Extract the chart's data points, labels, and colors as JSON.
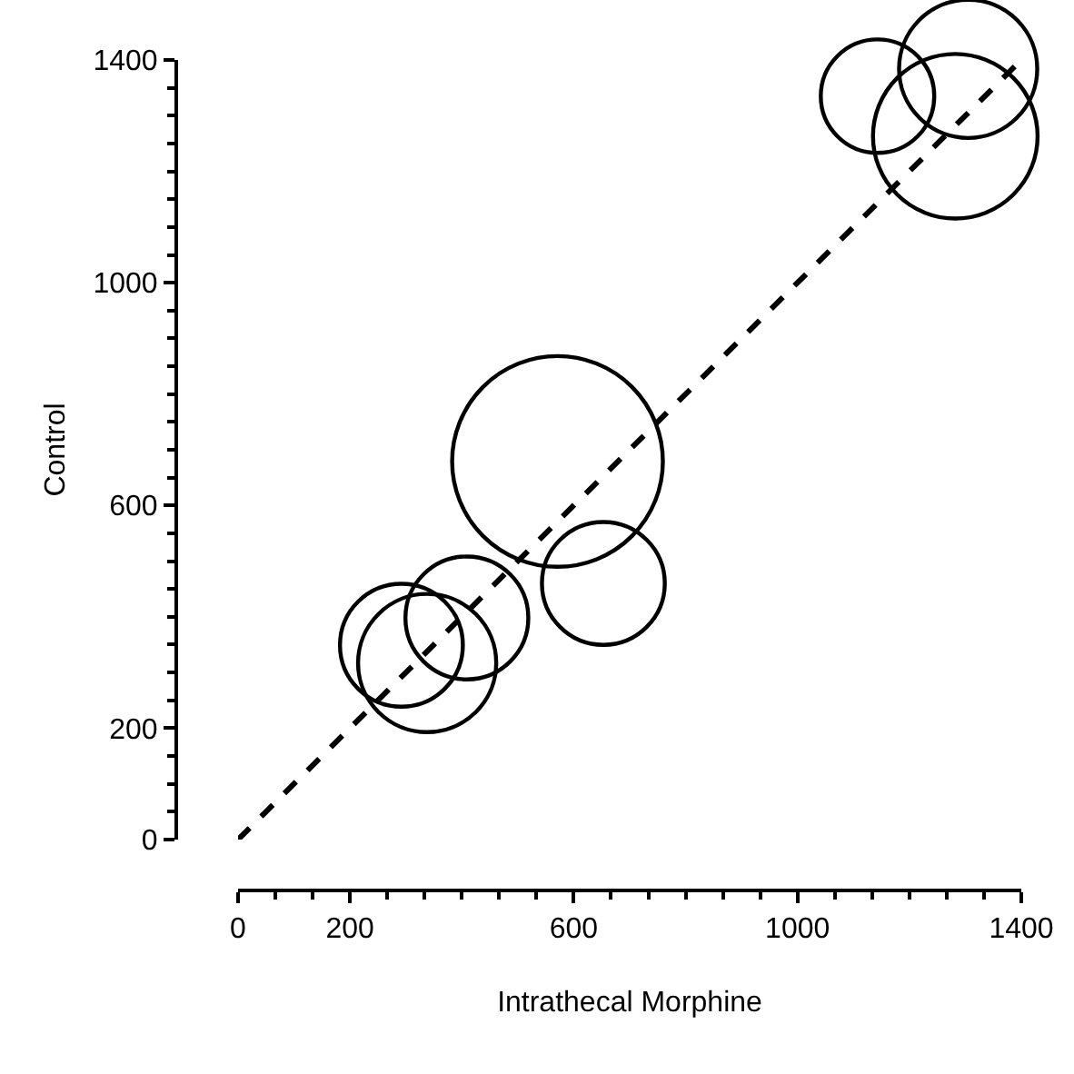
{
  "chart_data": {
    "type": "bubble",
    "xlabel": "Intrathecal Morphine",
    "ylabel": "Control",
    "xlim": [
      0,
      1400
    ],
    "ylim": [
      0,
      1400
    ],
    "xticks": [
      0,
      200,
      600,
      1000,
      1400
    ],
    "yticks": [
      0,
      200,
      600,
      1000,
      1400
    ],
    "series": [
      {
        "color": "#000000",
        "marker": "circle",
        "x": [
          571,
          653,
          292,
          338,
          409,
          1143,
          1305,
          1282
        ],
        "values": [
          679,
          460,
          349,
          317,
          398,
          1335,
          1384,
          1263
        ],
        "sizes": [
          1,
          0.34,
          0.34,
          0.43,
          0.34,
          0.29,
          0.43,
          0.61
        ]
      },
      {
        "type": "line",
        "color": "#000000",
        "line_style": "dashed",
        "marker": "none",
        "x": [
          0,
          1400
        ],
        "values": [
          0,
          1400
        ]
      }
    ]
  }
}
